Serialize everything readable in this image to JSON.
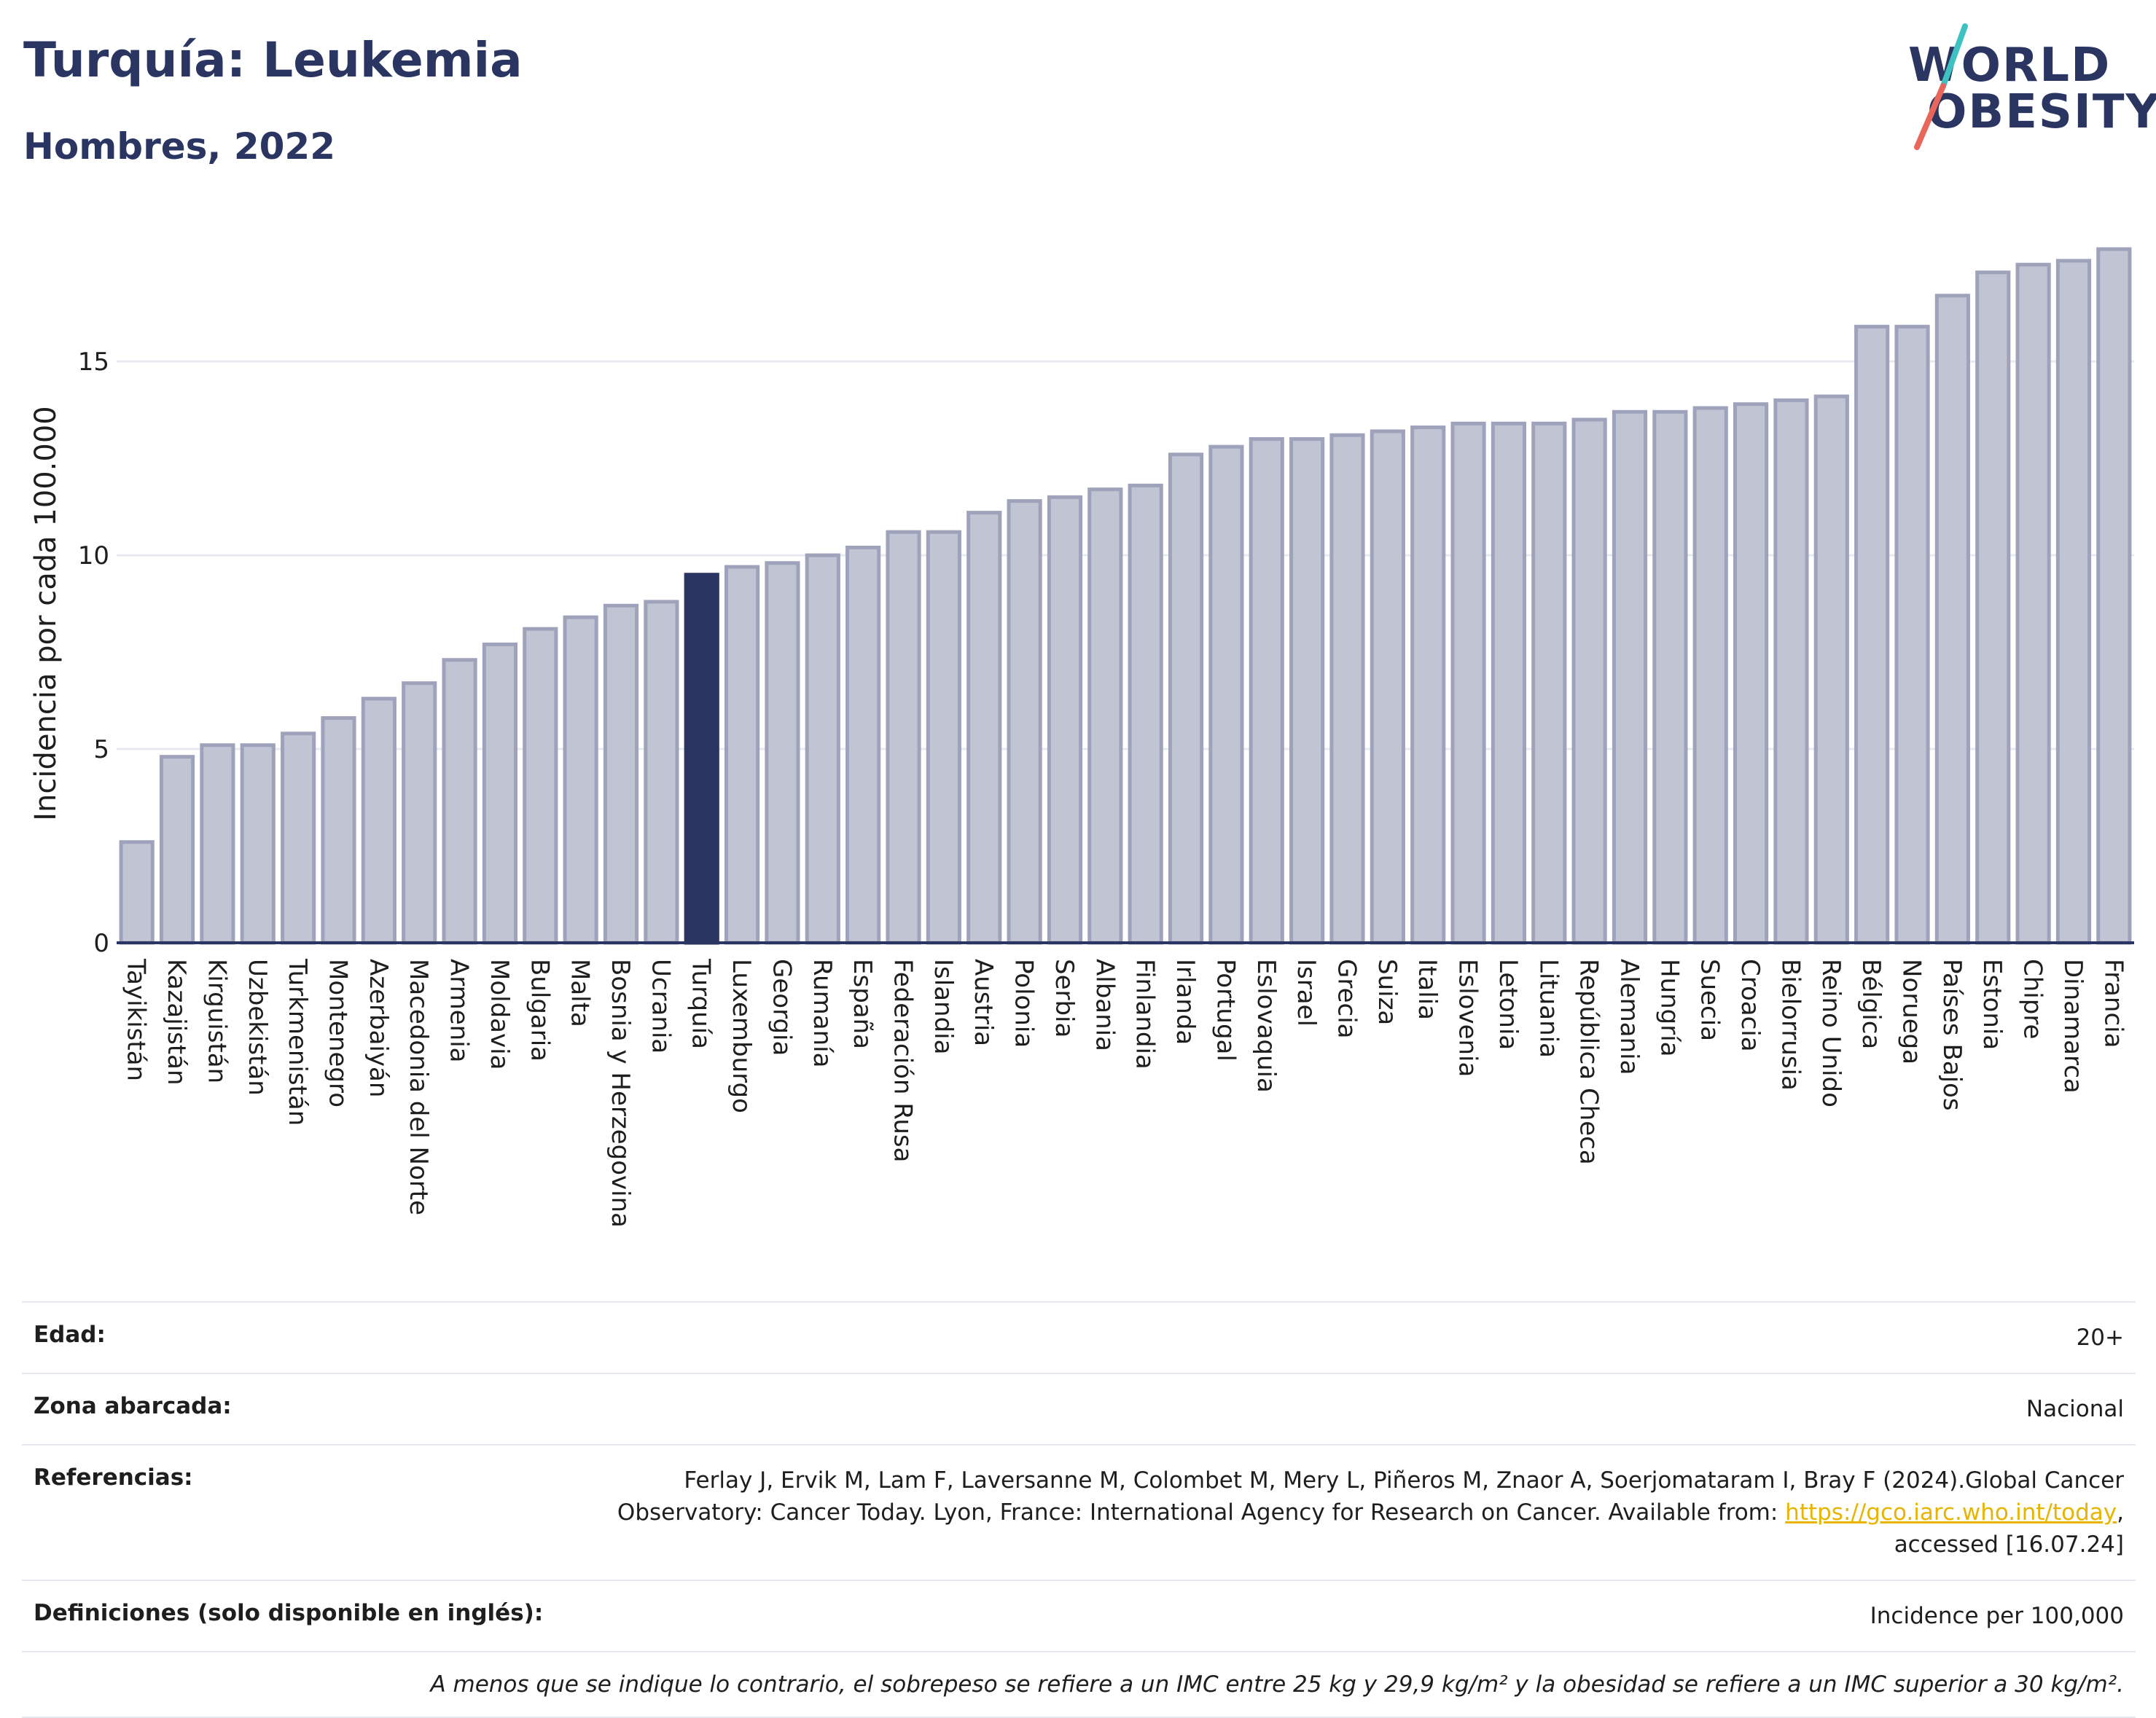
{
  "header": {
    "title": "Turquía: Leukemia",
    "subtitle": "Hombres, 2022"
  },
  "logo": {
    "line1": "WORLD",
    "line2": "OBESITY",
    "slash_colors": [
      "#3ec1c1",
      "#e8675a"
    ]
  },
  "colors": {
    "bar": "#c0c4d3",
    "bar_border": "#9ea3bb",
    "highlight": "#2a3561",
    "axis": "#2a3561",
    "grid": "#e8eaf0"
  },
  "chart_data": {
    "type": "bar",
    "ylabel": "Incidencia por cada 100.000",
    "xlabel": "",
    "ylim": [
      0,
      18.5
    ],
    "yticks": [
      0,
      5,
      10,
      15
    ],
    "grid": true,
    "highlight_category": "Turquía",
    "categories": [
      "Tayikistán",
      "Kazajistán",
      "Kirguistán",
      "Uzbekistán",
      "Turkmenistán",
      "Montenegro",
      "Azerbaiyán",
      "Macedonia del Norte",
      "Armenia",
      "Moldavia",
      "Bulgaria",
      "Malta",
      "Bosnia y Herzegovina",
      "Ucrania",
      "Turquía",
      "Luxemburgo",
      "Georgia",
      "Rumanía",
      "España",
      "Federación Rusa",
      "Islandia",
      "Austria",
      "Polonia",
      "Serbia",
      "Albania",
      "Finlandia",
      "Irlanda",
      "Portugal",
      "Eslovaquia",
      "Israel",
      "Grecia",
      "Suiza",
      "Italia",
      "Eslovenia",
      "Letonia",
      "Lituania",
      "República Checa",
      "Alemania",
      "Hungría",
      "Suecia",
      "Croacia",
      "Bielorrusia",
      "Reino Unido",
      "Bélgica",
      "Noruega",
      "Países Bajos",
      "Estonia",
      "Chipre",
      "Dinamarca",
      "Francia"
    ],
    "values": [
      2.6,
      4.8,
      5.1,
      5.1,
      5.4,
      5.8,
      6.3,
      6.7,
      7.3,
      7.7,
      8.1,
      8.4,
      8.7,
      8.8,
      9.5,
      9.7,
      9.8,
      10.0,
      10.2,
      10.6,
      10.6,
      11.1,
      11.4,
      11.5,
      11.7,
      11.8,
      12.6,
      12.8,
      13.0,
      13.0,
      13.1,
      13.2,
      13.3,
      13.4,
      13.4,
      13.4,
      13.5,
      13.7,
      13.7,
      13.8,
      13.9,
      14.0,
      14.1,
      15.9,
      15.9,
      16.7,
      17.3,
      17.5,
      17.6,
      17.9
    ]
  },
  "meta": {
    "age_label": "Edad:",
    "age_value": "20+",
    "area_label": "Zona abarcada:",
    "area_value": "Nacional",
    "refs_label": "Referencias:",
    "refs_text1": "Ferlay J, Ervik M, Lam F, Laversanne M, Colombet M, Mery L, Piñeros M, Znaor A, Soerjomataram I, Bray F (2024).Global Cancer",
    "refs_text2": "Observatory: Cancer Today. Lyon, France: International Agency for Research on Cancer. Available from: ",
    "refs_link": "https://gco.iarc.who.int/today",
    "refs_text3": ",",
    "refs_text4": "accessed [16.07.24]",
    "defs_label": "Definiciones (solo disponible en inglés):",
    "defs_value": "Incidence per 100,000",
    "note": "A menos que se indique lo contrario, el sobrepeso se refiere a un IMC entre 25 kg y 29,9 kg/m² y la obesidad se refiere a un IMC superior a 30 kg/m²."
  }
}
